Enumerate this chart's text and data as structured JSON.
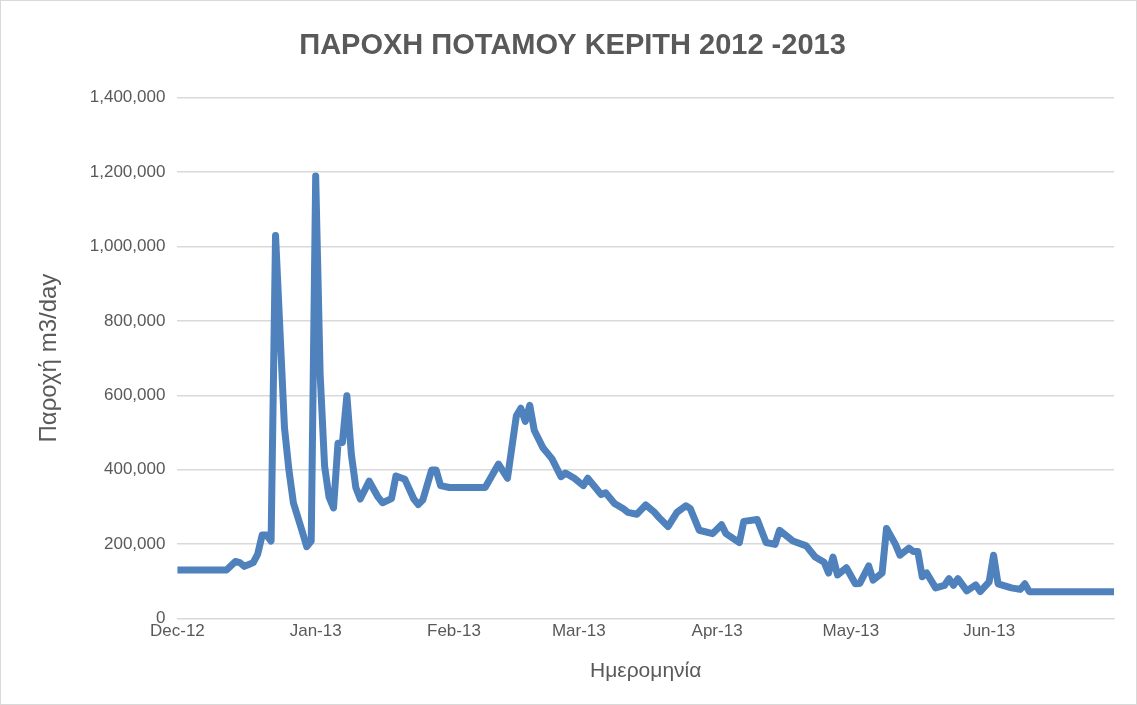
{
  "chart_data": {
    "type": "line",
    "title": "ΠΑΡΟΧΗ ΠΟΤΑΜΟΥ ΚΕΡΙΤΗ 2012 -2013",
    "xlabel": "Ημερομηνία",
    "ylabel": "Παροχή m3/day",
    "x": [
      "2012-12-01",
      "2012-12-12",
      "2012-12-14",
      "2012-12-15",
      "2012-12-16",
      "2012-12-17",
      "2012-12-18",
      "2012-12-19",
      "2012-12-20",
      "2012-12-21",
      "2012-12-22",
      "2012-12-23",
      "2012-12-25",
      "2012-12-26",
      "2012-12-27",
      "2012-12-29",
      "2012-12-30",
      "2012-12-31",
      "2013-01-01",
      "2013-01-02",
      "2013-01-03",
      "2013-01-04",
      "2013-01-05",
      "2013-01-06",
      "2013-01-07",
      "2013-01-08",
      "2013-01-09",
      "2013-01-10",
      "2013-01-11",
      "2013-01-13",
      "2013-01-15",
      "2013-01-16",
      "2013-01-18",
      "2013-01-19",
      "2013-01-21",
      "2013-01-23",
      "2013-01-24",
      "2013-01-25",
      "2013-01-27",
      "2013-01-28",
      "2013-01-29",
      "2013-01-31",
      "2013-02-08",
      "2013-02-11",
      "2013-02-13",
      "2013-02-15",
      "2013-02-16",
      "2013-02-17",
      "2013-02-18",
      "2013-02-19",
      "2013-02-21",
      "2013-02-23",
      "2013-02-25",
      "2013-02-26",
      "2013-02-28",
      "2013-03-02",
      "2013-03-03",
      "2013-03-06",
      "2013-03-07",
      "2013-03-09",
      "2013-03-11",
      "2013-03-12",
      "2013-03-14",
      "2013-03-16",
      "2013-03-18",
      "2013-03-19",
      "2013-03-21",
      "2013-03-23",
      "2013-03-25",
      "2013-03-26",
      "2013-03-28",
      "2013-03-31",
      "2013-04-02",
      "2013-04-03",
      "2013-04-06",
      "2013-04-07",
      "2013-04-10",
      "2013-04-12",
      "2013-04-14",
      "2013-04-15",
      "2013-04-18",
      "2013-04-21",
      "2013-04-23",
      "2013-04-25",
      "2013-04-26",
      "2013-04-27",
      "2013-04-28",
      "2013-04-30",
      "2013-05-02",
      "2013-05-03",
      "2013-05-05",
      "2013-05-06",
      "2013-05-08",
      "2013-05-09",
      "2013-05-11",
      "2013-05-12",
      "2013-05-14",
      "2013-05-15",
      "2013-05-16",
      "2013-05-17",
      "2013-05-18",
      "2013-05-20",
      "2013-05-22",
      "2013-05-23",
      "2013-05-24",
      "2013-05-25",
      "2013-05-27",
      "2013-05-29",
      "2013-05-30",
      "2013-06-01",
      "2013-06-02",
      "2013-06-03",
      "2013-06-06",
      "2013-06-08",
      "2013-06-09",
      "2013-06-10",
      "2013-06-29"
    ],
    "series": [
      {
        "color": "#4f81bd",
        "values": [
          130000,
          130000,
          153000,
          150000,
          140000,
          145000,
          150000,
          173000,
          224000,
          224000,
          208000,
          1030000,
          513000,
          399000,
          311000,
          233000,
          193000,
          208000,
          1190000,
          657000,
          409000,
          326000,
          297000,
          471000,
          473000,
          599000,
          441000,
          352000,
          321000,
          369000,
          326000,
          311000,
          322000,
          383000,
          374000,
          321000,
          306000,
          318000,
          399000,
          399000,
          357000,
          352000,
          352000,
          415000,
          377000,
          545000,
          565000,
          530000,
          573000,
          506000,
          458000,
          429000,
          381000,
          391000,
          377000,
          357000,
          377000,
          333000,
          338000,
          309000,
          295000,
          285000,
          280000,
          305000,
          285000,
          271000,
          247000,
          285000,
          303000,
          295000,
          237000,
          228000,
          252000,
          228000,
          204000,
          261000,
          266000,
          204000,
          199000,
          237000,
          208000,
          195000,
          165000,
          151000,
          122000,
          165000,
          117000,
          136000,
          93000,
          94000,
          141000,
          103000,
          122000,
          242000,
          199000,
          170000,
          189000,
          180000,
          180000,
          112000,
          122000,
          82000,
          89000,
          107000,
          89000,
          107000,
          74000,
          90000,
          72000,
          98000,
          170000,
          93000,
          82000,
          78000,
          93000,
          72000,
          72000
        ]
      }
    ],
    "xlim": [
      "2012-12-01",
      "2013-06-29"
    ],
    "xticks": [
      {
        "value": "2012-12-01",
        "label": "Dec-12"
      },
      {
        "value": "2013-01-01",
        "label": "Jan-13"
      },
      {
        "value": "2013-02-01",
        "label": "Feb-13"
      },
      {
        "value": "2013-03-01",
        "label": "Mar-13"
      },
      {
        "value": "2013-04-01",
        "label": "Apr-13"
      },
      {
        "value": "2013-05-01",
        "label": "May-13"
      },
      {
        "value": "2013-06-01",
        "label": "Jun-13"
      }
    ],
    "ylim": [
      0,
      1400000
    ],
    "yticks": [
      0,
      {
        "value": 200000,
        "label": "200,000"
      },
      {
        "value": 400000,
        "label": "400,000"
      },
      {
        "value": 600000,
        "label": "600,000"
      },
      {
        "value": 800000,
        "label": "800,000"
      },
      {
        "value": 1000000,
        "label": "1,000,000"
      },
      {
        "value": 1200000,
        "label": "1,200,000"
      },
      {
        "value": 1400000,
        "label": "1,400,000"
      }
    ],
    "grid": "y"
  }
}
